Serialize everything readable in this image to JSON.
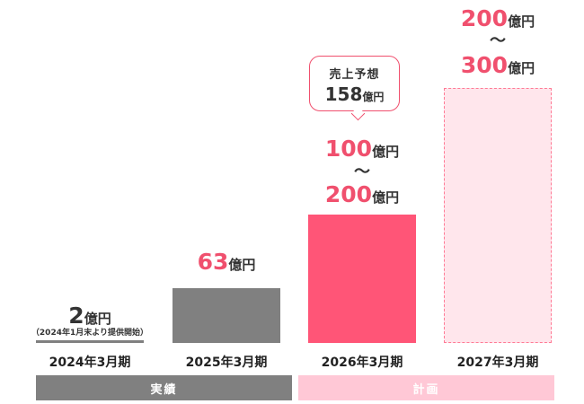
{
  "chart_data": {
    "type": "bar",
    "categories": [
      "2024年3月期",
      "2025年3月期",
      "2026年3月期",
      "2027年3月期"
    ],
    "unit": "億円",
    "ylim": [
      0,
      300
    ],
    "bars": [
      {
        "category": "2024年3月期",
        "value": 2,
        "value_label": "2",
        "note": "（2024年1月末より提供開始）",
        "group": "実績"
      },
      {
        "category": "2025年3月期",
        "value": 63,
        "value_label": "63",
        "group": "実績"
      },
      {
        "category": "2026年3月期",
        "range": [
          100,
          200
        ],
        "low_label": "100",
        "high_label": "200",
        "group": "計画",
        "forecast_title": "売上予想",
        "forecast_value": "158",
        "forecast_unit": "億円"
      },
      {
        "category": "2027年3月期",
        "range": [
          200,
          300
        ],
        "low_label": "200",
        "high_label": "300",
        "group": "計画"
      }
    ],
    "range_separator": "〜",
    "groups": [
      {
        "label": "実績",
        "color": "#808080"
      },
      {
        "label": "計画",
        "color": "#ffc8d6"
      }
    ],
    "colors": {
      "actual": "#808080",
      "plan_2026": "#ff5577",
      "plan_2027_fill": "#ffe6ec",
      "plan_2027_border": "#ff7a95",
      "value_grey": "#333333",
      "value_pink": "#f0506e"
    }
  }
}
